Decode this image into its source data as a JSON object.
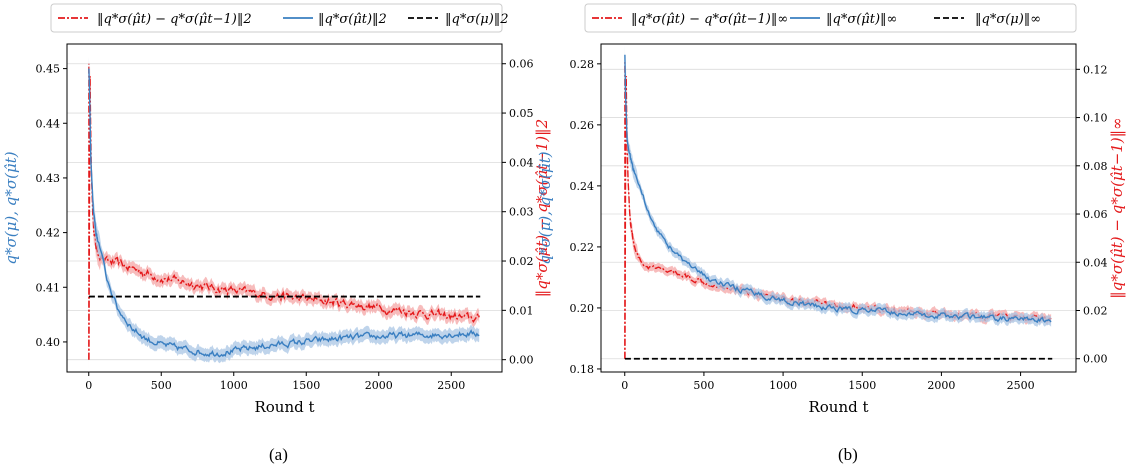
{
  "captions": [
    "(a)",
    "(b)"
  ],
  "legends": [
    [
      "‖q*σ(μ̂t) − q*σ(μ̂t−1)‖2",
      "‖q*σ(μ̂t)‖2",
      "‖q*σ(μ)‖2"
    ],
    [
      "‖q*σ(μ̂t) − q*σ(μ̂t−1)‖∞",
      "‖q*σ(μ̂t)‖∞",
      "‖q*σ(μ)‖∞"
    ]
  ],
  "colors": {
    "diff": "#e41a1c",
    "est": "#3a7fc1",
    "true": "#000000",
    "band_diff": "#f4a6a6",
    "band_est": "#a9c6e4"
  },
  "chart_data": [
    {
      "type": "line",
      "xlabel": "Round t",
      "ylabel_left": "q*σ(μ), q*σ(μ̂t)",
      "ylabel_right": "‖q*σ(μ̂t) − q*σ(μ̂t−1)‖2",
      "xlim": [
        -150,
        2850
      ],
      "ylim_left": [
        0.3945,
        0.4545
      ],
      "ylim_right": [
        -0.0025,
        0.064
      ],
      "xticks": [
        0,
        500,
        1000,
        1500,
        2000,
        2500
      ],
      "yticks_left": [
        0.4,
        0.41,
        0.42,
        0.43,
        0.44,
        0.45
      ],
      "yticks_right": [
        0.0,
        0.01,
        0.02,
        0.03,
        0.04,
        0.05,
        0.06
      ],
      "series": [
        {
          "name": "‖q*σ(μ̂t) − q*σ(μ̂t−1)‖2",
          "axis": "right",
          "style": "dashdot",
          "x": [
            1,
            8,
            12,
            18,
            30,
            50,
            80,
            120,
            200,
            300,
            400,
            500,
            600,
            700,
            800,
            1000,
            1200,
            1400,
            1600,
            1800,
            2000,
            2200,
            2400,
            2600,
            2700
          ],
          "values": [
            0.0,
            0.06,
            0.05,
            0.038,
            0.028,
            0.023,
            0.021,
            0.02,
            0.0195,
            0.0185,
            0.0175,
            0.0165,
            0.016,
            0.0155,
            0.0148,
            0.014,
            0.0133,
            0.0126,
            0.012,
            0.0113,
            0.0105,
            0.0098,
            0.009,
            0.0085,
            0.0083
          ]
        },
        {
          "name": "‖q*σ(μ̂t)‖2",
          "axis": "left",
          "style": "solid",
          "x": [
            1,
            5,
            15,
            30,
            50,
            80,
            120,
            200,
            300,
            400,
            500,
            600,
            700,
            800,
            900,
            1000,
            1100,
            1200,
            1400,
            1600,
            1800,
            2000,
            2200,
            2400,
            2600,
            2700
          ],
          "values": [
            0.45,
            0.446,
            0.433,
            0.425,
            0.42,
            0.417,
            0.412,
            0.406,
            0.4025,
            0.4005,
            0.3995,
            0.399,
            0.3985,
            0.398,
            0.398,
            0.3983,
            0.3988,
            0.3992,
            0.3998,
            0.4003,
            0.4008,
            0.401,
            0.4012,
            0.4013,
            0.4015,
            0.4015
          ]
        },
        {
          "name": "‖q*σ(μ)‖2",
          "axis": "left",
          "style": "dashed",
          "x": [
            1,
            2700
          ],
          "values": [
            0.4083,
            0.4083
          ]
        }
      ]
    },
    {
      "type": "line",
      "xlabel": "Round t",
      "ylabel_left": "q*σ(μ), q*σ(μ̂t)",
      "ylabel_right": "‖q*σ(μ̂t) − q*σ(μ̂t−1)‖∞",
      "xlim": [
        -150,
        2850
      ],
      "ylim_left": [
        0.179,
        0.2865
      ],
      "ylim_right": [
        -0.0055,
        0.1305
      ],
      "xticks": [
        0,
        500,
        1000,
        1500,
        2000,
        2500
      ],
      "yticks_left": [
        0.18,
        0.2,
        0.22,
        0.24,
        0.26,
        0.28
      ],
      "yticks_right": [
        0.0,
        0.02,
        0.04,
        0.06,
        0.08,
        0.1,
        0.12
      ],
      "series": [
        {
          "name": "‖q*σ(μ̂t) − q*σ(μ̂t−1)‖∞",
          "axis": "right",
          "style": "dashdot",
          "x": [
            1,
            8,
            12,
            20,
            35,
            60,
            100,
            150,
            200,
            300,
            400,
            500,
            700,
            900,
            1100,
            1300,
            1500,
            1700,
            1900,
            2100,
            2300,
            2500,
            2700
          ],
          "values": [
            0.0,
            0.123,
            0.1,
            0.075,
            0.057,
            0.047,
            0.04,
            0.038,
            0.037,
            0.036,
            0.034,
            0.032,
            0.029,
            0.026,
            0.024,
            0.022,
            0.021,
            0.02,
            0.019,
            0.018,
            0.0175,
            0.017,
            0.0165
          ]
        },
        {
          "name": "‖q*σ(μ̂t)‖∞",
          "axis": "left",
          "style": "solid",
          "x": [
            1,
            5,
            15,
            30,
            50,
            80,
            120,
            160,
            200,
            300,
            400,
            500,
            600,
            700,
            800,
            1000,
            1200,
            1400,
            1600,
            1800,
            2000,
            2200,
            2400,
            2600,
            2700
          ],
          "values": [
            0.283,
            0.27,
            0.255,
            0.25,
            0.246,
            0.242,
            0.236,
            0.23,
            0.226,
            0.219,
            0.214,
            0.2105,
            0.208,
            0.2065,
            0.205,
            0.2025,
            0.2005,
            0.1995,
            0.199,
            0.198,
            0.1975,
            0.197,
            0.1965,
            0.196,
            0.1955
          ]
        },
        {
          "name": "‖q*σ(μ)‖∞",
          "axis": "right",
          "style": "dashed",
          "x": [
            1,
            2700
          ],
          "values": [
            0.0,
            0.0
          ]
        }
      ]
    }
  ]
}
